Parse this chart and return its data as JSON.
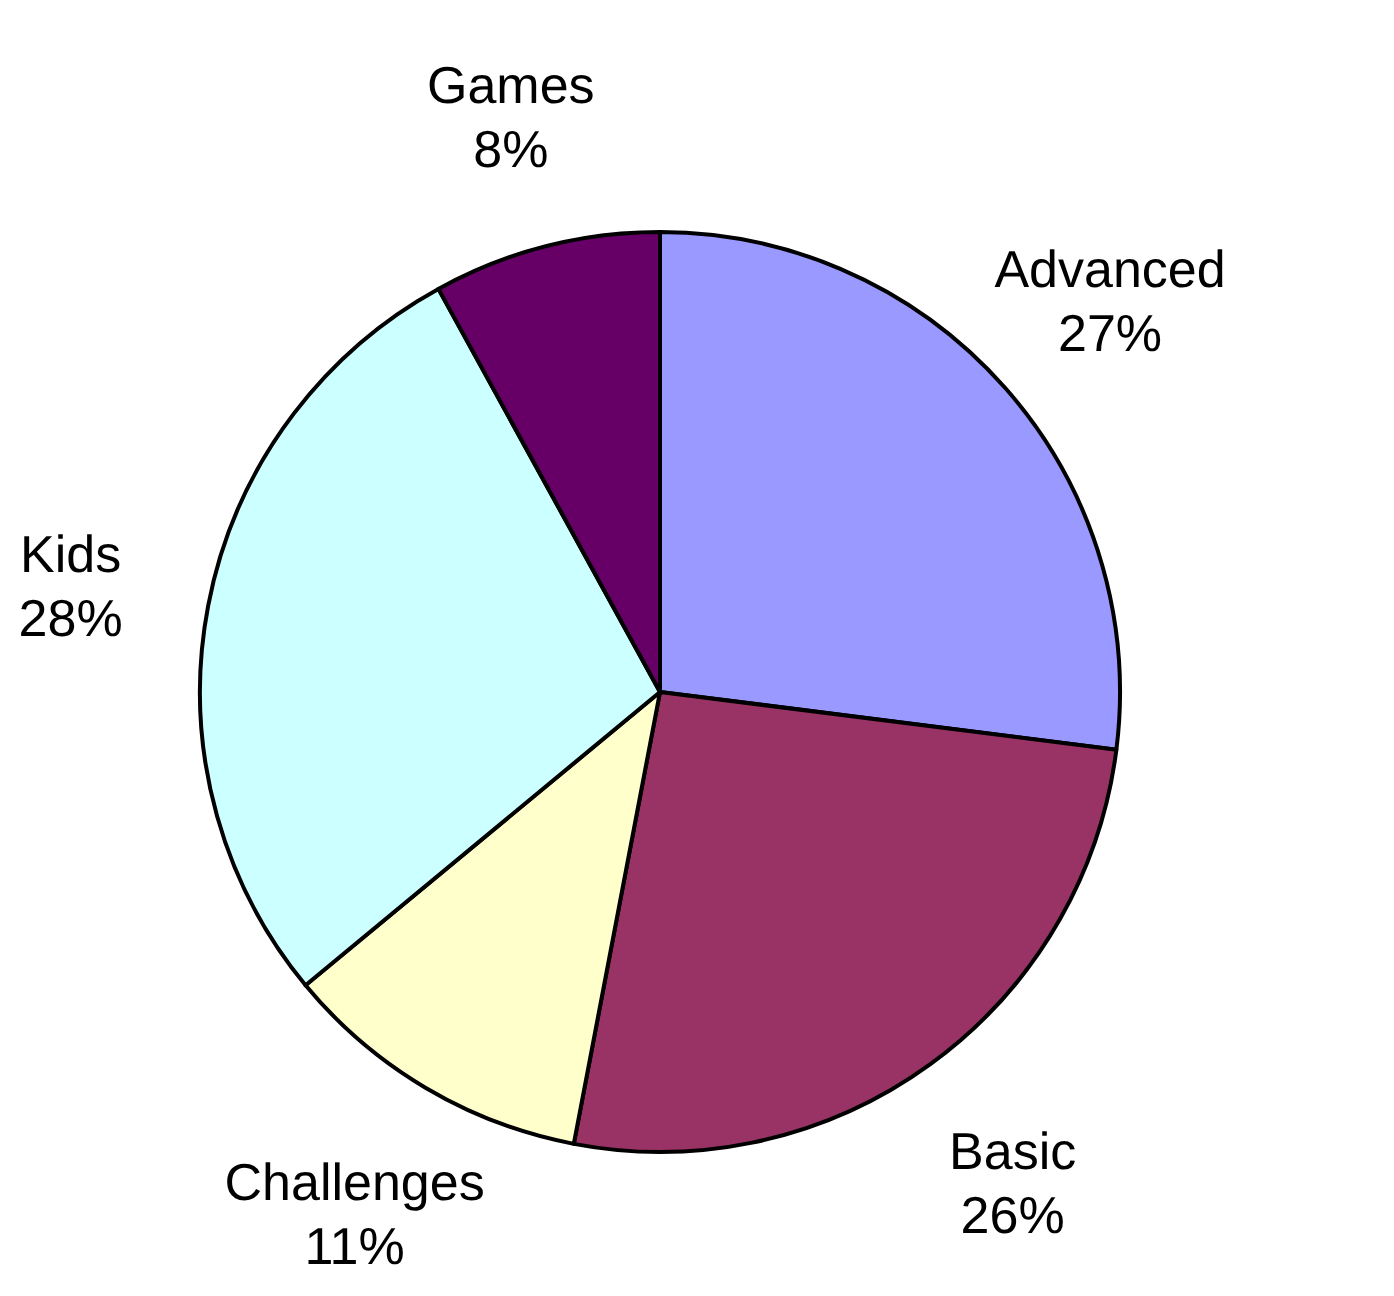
{
  "chart_data": {
    "type": "pie",
    "categories": [
      "Advanced",
      "Basic",
      "Challenges",
      "Kids",
      "Games"
    ],
    "values": [
      27,
      26,
      11,
      28,
      8
    ],
    "colors": [
      "#9999ff",
      "#993366",
      "#ffffcc",
      "#ccffff",
      "#660066"
    ],
    "value_labels": [
      "27%",
      "26%",
      "11%",
      "28%",
      "8%"
    ]
  }
}
